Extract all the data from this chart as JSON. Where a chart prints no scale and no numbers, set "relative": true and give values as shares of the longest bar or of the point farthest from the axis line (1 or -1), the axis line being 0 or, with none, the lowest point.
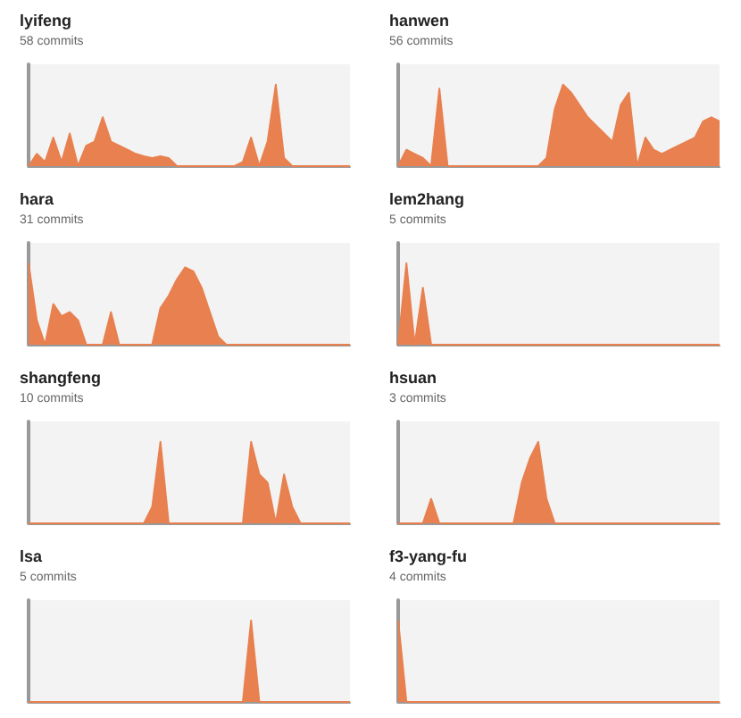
{
  "chart_data": [
    {
      "type": "area",
      "title": "lyifeng",
      "subtitle": "58 commits",
      "color": "#e8804f",
      "relative": true,
      "categories": [
        null,
        null,
        null,
        null,
        null,
        null,
        null,
        null,
        null,
        null,
        null,
        null,
        null,
        null,
        null,
        null,
        null,
        null,
        null,
        null,
        null,
        null,
        null,
        null,
        null,
        null,
        null,
        null,
        null,
        null,
        null,
        null,
        null,
        null,
        null,
        null,
        null,
        null,
        null,
        null
      ],
      "values": [
        0,
        0.15,
        0.05,
        0.35,
        0.05,
        0.4,
        0,
        0.25,
        0.3,
        0.6,
        0.3,
        0.25,
        0.2,
        0.15,
        0.12,
        0.1,
        0.12,
        0.1,
        0,
        0,
        0,
        0,
        0,
        0,
        0,
        0,
        0.05,
        0.35,
        0,
        0.3,
        1,
        0.1,
        0,
        0,
        0,
        0,
        0,
        0,
        0,
        0
      ]
    },
    {
      "type": "area",
      "title": "hanwen",
      "subtitle": "56 commits",
      "color": "#e8804f",
      "relative": true,
      "categories": [
        null,
        null,
        null,
        null,
        null,
        null,
        null,
        null,
        null,
        null,
        null,
        null,
        null,
        null,
        null,
        null,
        null,
        null,
        null,
        null,
        null,
        null,
        null,
        null,
        null,
        null,
        null,
        null,
        null,
        null,
        null,
        null,
        null,
        null,
        null,
        null,
        null,
        null,
        null,
        null
      ],
      "values": [
        0,
        0.2,
        0.15,
        0.1,
        0,
        0.95,
        0,
        0,
        0,
        0,
        0,
        0,
        0,
        0,
        0,
        0,
        0,
        0,
        0.1,
        0.7,
        1,
        0.9,
        0.75,
        0.6,
        0.5,
        0.4,
        0.3,
        0.75,
        0.9,
        0,
        0.35,
        0.2,
        0.15,
        0.2,
        0.25,
        0.3,
        0.35,
        0.55,
        0.6,
        0.55
      ]
    },
    {
      "type": "area",
      "title": "hara",
      "subtitle": "31 commits",
      "color": "#e8804f",
      "relative": true,
      "categories": [
        null,
        null,
        null,
        null,
        null,
        null,
        null,
        null,
        null,
        null,
        null,
        null,
        null,
        null,
        null,
        null,
        null,
        null,
        null,
        null,
        null,
        null,
        null,
        null,
        null,
        null,
        null,
        null,
        null,
        null,
        null,
        null,
        null,
        null,
        null,
        null,
        null,
        null,
        null,
        null
      ],
      "values": [
        1,
        0.3,
        0,
        0.5,
        0.35,
        0.4,
        0.3,
        0,
        0,
        0,
        0.4,
        0,
        0,
        0,
        0,
        0,
        0.45,
        0.6,
        0.8,
        0.95,
        0.9,
        0.7,
        0.4,
        0.1,
        0,
        0,
        0,
        0,
        0,
        0,
        0,
        0,
        0,
        0,
        0,
        0,
        0,
        0,
        0,
        0
      ]
    },
    {
      "type": "area",
      "title": "lem2hang",
      "subtitle": "5 commits",
      "color": "#e8804f",
      "relative": true,
      "categories": [
        null,
        null,
        null,
        null,
        null,
        null,
        null,
        null,
        null,
        null,
        null,
        null,
        null,
        null,
        null,
        null,
        null,
        null,
        null,
        null,
        null,
        null,
        null,
        null,
        null,
        null,
        null,
        null,
        null,
        null,
        null,
        null,
        null,
        null,
        null,
        null,
        null,
        null,
        null,
        null
      ],
      "values": [
        0,
        1,
        0,
        0.7,
        0,
        0,
        0,
        0,
        0,
        0,
        0,
        0,
        0,
        0,
        0,
        0,
        0,
        0,
        0,
        0,
        0,
        0,
        0,
        0,
        0,
        0,
        0,
        0,
        0,
        0,
        0,
        0,
        0,
        0,
        0,
        0,
        0,
        0,
        0,
        0
      ]
    },
    {
      "type": "area",
      "title": "shangfeng",
      "subtitle": "10 commits",
      "color": "#e8804f",
      "relative": true,
      "categories": [
        null,
        null,
        null,
        null,
        null,
        null,
        null,
        null,
        null,
        null,
        null,
        null,
        null,
        null,
        null,
        null,
        null,
        null,
        null,
        null,
        null,
        null,
        null,
        null,
        null,
        null,
        null,
        null,
        null,
        null,
        null,
        null,
        null,
        null,
        null,
        null,
        null,
        null,
        null,
        null
      ],
      "values": [
        0,
        0,
        0,
        0,
        0,
        0,
        0,
        0,
        0,
        0,
        0,
        0,
        0,
        0,
        0,
        0.2,
        1,
        0,
        0,
        0,
        0,
        0,
        0,
        0,
        0,
        0,
        0,
        1,
        0.6,
        0.5,
        0,
        0.6,
        0.2,
        0,
        0,
        0,
        0,
        0,
        0,
        0
      ]
    },
    {
      "type": "area",
      "title": "hsuan",
      "subtitle": "3 commits",
      "color": "#e8804f",
      "relative": true,
      "categories": [
        null,
        null,
        null,
        null,
        null,
        null,
        null,
        null,
        null,
        null,
        null,
        null,
        null,
        null,
        null,
        null,
        null,
        null,
        null,
        null,
        null,
        null,
        null,
        null,
        null,
        null,
        null,
        null,
        null,
        null,
        null,
        null,
        null,
        null,
        null,
        null,
        null,
        null,
        null,
        null
      ],
      "values": [
        0,
        0,
        0,
        0,
        0.3,
        0,
        0,
        0,
        0,
        0,
        0,
        0,
        0,
        0,
        0,
        0.5,
        0.8,
        1,
        0.3,
        0,
        0,
        0,
        0,
        0,
        0,
        0,
        0,
        0,
        0,
        0,
        0,
        0,
        0,
        0,
        0,
        0,
        0,
        0,
        0,
        0
      ]
    },
    {
      "type": "area",
      "title": "lsa",
      "subtitle": "5 commits",
      "color": "#e8804f",
      "relative": true,
      "categories": [
        null,
        null,
        null,
        null,
        null,
        null,
        null,
        null,
        null,
        null,
        null,
        null,
        null,
        null,
        null,
        null,
        null,
        null,
        null,
        null,
        null,
        null,
        null,
        null,
        null,
        null,
        null,
        null,
        null,
        null,
        null,
        null,
        null,
        null,
        null,
        null,
        null,
        null,
        null,
        null
      ],
      "values": [
        0,
        0,
        0,
        0,
        0,
        0,
        0,
        0,
        0,
        0,
        0,
        0,
        0,
        0,
        0,
        0,
        0,
        0,
        0,
        0,
        0,
        0,
        0,
        0,
        0,
        0,
        0,
        1,
        0,
        0,
        0,
        0,
        0,
        0,
        0,
        0,
        0,
        0,
        0,
        0
      ]
    },
    {
      "type": "area",
      "title": "f3-yang-fu",
      "subtitle": "4 commits",
      "color": "#e8804f",
      "relative": true,
      "categories": [
        null,
        null,
        null,
        null,
        null,
        null,
        null,
        null,
        null,
        null,
        null,
        null,
        null,
        null,
        null,
        null,
        null,
        null,
        null,
        null,
        null,
        null,
        null,
        null,
        null,
        null,
        null,
        null,
        null,
        null,
        null,
        null,
        null,
        null,
        null,
        null,
        null,
        null,
        null,
        null
      ],
      "values": [
        1,
        0,
        0,
        0,
        0,
        0,
        0,
        0,
        0,
        0,
        0,
        0,
        0,
        0,
        0,
        0,
        0,
        0,
        0,
        0,
        0,
        0,
        0,
        0,
        0,
        0,
        0,
        0,
        0,
        0,
        0,
        0,
        0,
        0,
        0,
        0,
        0,
        0,
        0,
        0
      ]
    }
  ]
}
